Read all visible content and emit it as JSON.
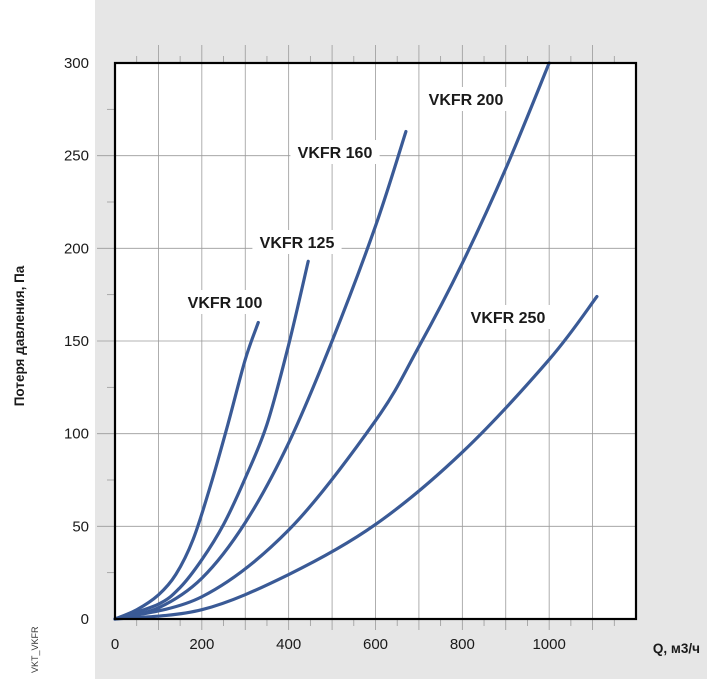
{
  "chart_data": {
    "type": "line",
    "xlabel": "Q, м3/ч",
    "ylabel": "Потеря давления, Па",
    "code": "VKT_VKFR",
    "xlim": [
      0,
      1200
    ],
    "ylim": [
      0,
      300
    ],
    "x_ticks": [
      "0",
      "200",
      "400",
      "600",
      "800",
      "1000"
    ],
    "y_ticks": [
      "0",
      "50",
      "100",
      "150",
      "200",
      "250",
      "300"
    ],
    "grid": true,
    "colors": {
      "panel": "#e6e6e6",
      "plot": "#ffffff",
      "curve": "#3a5a96",
      "grid": "#9a9a9a"
    },
    "series": [
      {
        "name": "VKFR 100",
        "x": [
          0,
          50,
          100,
          140,
          180,
          220,
          260,
          300,
          330
        ],
        "y": [
          0,
          5,
          13,
          24,
          43,
          72,
          105,
          140,
          160
        ]
      },
      {
        "name": "VKFR 125",
        "x": [
          0,
          100,
          150,
          200,
          250,
          300,
          350,
          400,
          445
        ],
        "y": [
          0,
          8,
          17,
          32,
          51,
          76,
          105,
          148,
          193
        ]
      },
      {
        "name": "VKFR 160",
        "x": [
          0,
          100,
          200,
          300,
          400,
          500,
          600,
          670
        ],
        "y": [
          0,
          6,
          22,
          52,
          95,
          150,
          212,
          263
        ]
      },
      {
        "name": "VKFR 200",
        "x": [
          0,
          200,
          400,
          600,
          700,
          800,
          900,
          1000
        ],
        "y": [
          0,
          12,
          48,
          107,
          147,
          192,
          243,
          300
        ]
      },
      {
        "name": "VKFR 250",
        "x": [
          0,
          200,
          400,
          600,
          800,
          1000,
          1110
        ],
        "y": [
          0,
          5,
          24,
          51,
          90,
          140,
          174
        ]
      }
    ]
  }
}
